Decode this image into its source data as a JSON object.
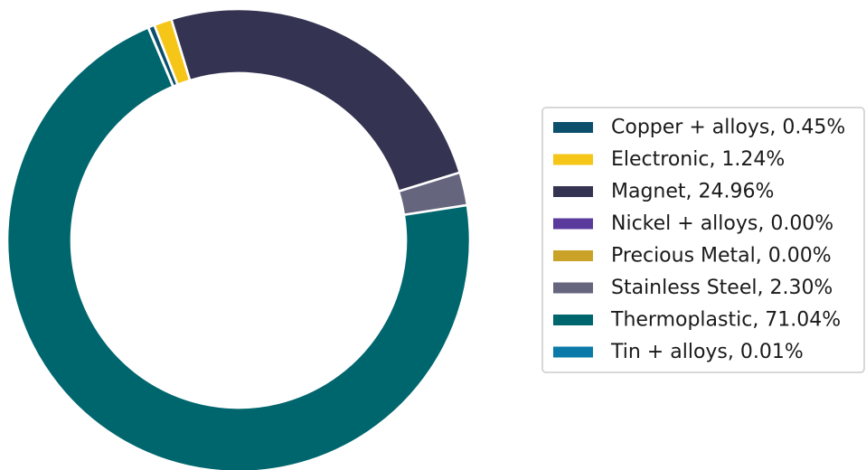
{
  "chart_data": {
    "type": "pie",
    "style": "donut",
    "legend_position": "right",
    "slices": [
      {
        "label": "Copper + alloys, 0.45%",
        "name": "Copper + alloys",
        "value": 0.45,
        "color": "#0b4f6c"
      },
      {
        "label": "Electronic, 1.24%",
        "name": "Electronic",
        "value": 1.24,
        "color": "#f5c518"
      },
      {
        "label": "Magnet, 24.96%",
        "name": "Magnet",
        "value": 24.96,
        "color": "#343351"
      },
      {
        "label": "Nickel + alloys, 0.00%",
        "name": "Nickel + alloys",
        "value": 0.0,
        "color": "#5b3a9e"
      },
      {
        "label": "Precious Metal, 0.00%",
        "name": "Precious Metal",
        "value": 0.0,
        "color": "#c9a227"
      },
      {
        "label": "Stainless Steel, 2.30%",
        "name": "Stainless Steel",
        "value": 2.3,
        "color": "#66657e"
      },
      {
        "label": "Thermoplastic, 71.04%",
        "name": "Thermoplastic",
        "value": 71.04,
        "color": "#00666e"
      },
      {
        "label": "Tin + alloys, 0.01%",
        "name": "Tin + alloys",
        "value": 0.01,
        "color": "#0b7aa8"
      }
    ]
  }
}
